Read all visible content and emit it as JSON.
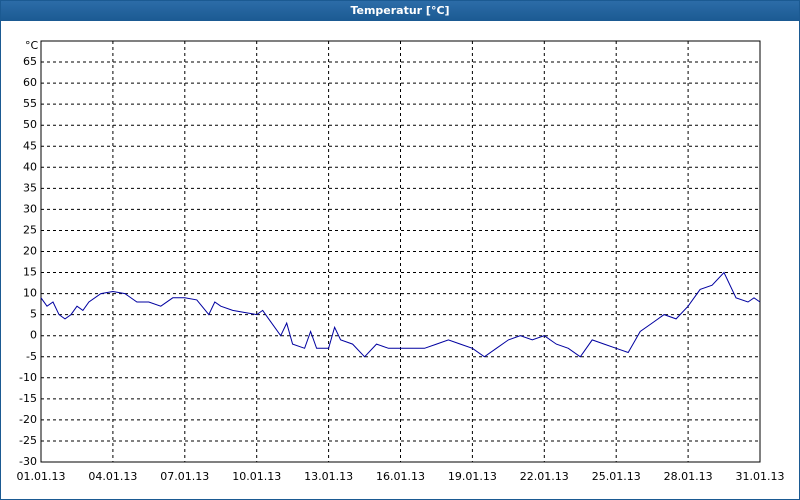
{
  "chart_data": {
    "type": "line",
    "title": "Temperatur [°C]",
    "y_label": "°C",
    "x": [
      0,
      0.25,
      0.5,
      0.75,
      1,
      1.25,
      1.5,
      1.75,
      2,
      2.5,
      3,
      3.5,
      4,
      4.5,
      5,
      5.5,
      6,
      6.5,
      7,
      7.25,
      7.5,
      8,
      8.5,
      9,
      9.25,
      9.5,
      10,
      10.25,
      10.5,
      11,
      11.25,
      11.5,
      12,
      12.25,
      12.5,
      13,
      13.5,
      14,
      14.5,
      15,
      15.5,
      16,
      16.5,
      17,
      17.5,
      18,
      18.5,
      19,
      19.5,
      20,
      20.5,
      21,
      21.5,
      22,
      22.5,
      23,
      23.5,
      24,
      24.5,
      25,
      25.5,
      26,
      26.5,
      27,
      27.5,
      28,
      28.5,
      29,
      29.5,
      29.75,
      30
    ],
    "series": [
      {
        "name": "Temperatur",
        "color": "#0000a0",
        "values": [
          9,
          7,
          8,
          5,
          4,
          5,
          7,
          6,
          8,
          10,
          10.5,
          10,
          8,
          8,
          7,
          9,
          9,
          8.5,
          5,
          8,
          7,
          6,
          5.5,
          5,
          6,
          4,
          0,
          3,
          -2,
          -3,
          1,
          -3,
          -3,
          2,
          -1,
          -2,
          -5,
          -2,
          -3,
          -3,
          -3,
          -3,
          -2,
          -1,
          -2,
          -3,
          -5,
          -3,
          -1,
          0,
          -1,
          0,
          -2,
          -3,
          -5,
          -1,
          -2,
          -3,
          -4,
          1,
          3,
          5,
          4,
          7,
          11,
          12,
          15,
          9,
          8,
          9,
          8
        ]
      }
    ],
    "xlim": [
      0,
      30
    ],
    "xticks": [
      {
        "value": 0,
        "label": "01.01.13"
      },
      {
        "value": 3,
        "label": "04.01.13"
      },
      {
        "value": 6,
        "label": "07.01.13"
      },
      {
        "value": 9,
        "label": "10.01.13"
      },
      {
        "value": 12,
        "label": "13.01.13"
      },
      {
        "value": 15,
        "label": "16.01.13"
      },
      {
        "value": 18,
        "label": "19.01.13"
      },
      {
        "value": 21,
        "label": "22.01.13"
      },
      {
        "value": 24,
        "label": "25.01.13"
      },
      {
        "value": 27,
        "label": "28.01.13"
      },
      {
        "value": 30,
        "label": "31.01.13"
      }
    ],
    "ylim": [
      -30,
      70
    ],
    "yticks": [
      -30,
      -25,
      -20,
      -15,
      -10,
      -5,
      0,
      5,
      10,
      15,
      20,
      25,
      30,
      35,
      40,
      45,
      50,
      55,
      60,
      65
    ],
    "grid": true
  }
}
